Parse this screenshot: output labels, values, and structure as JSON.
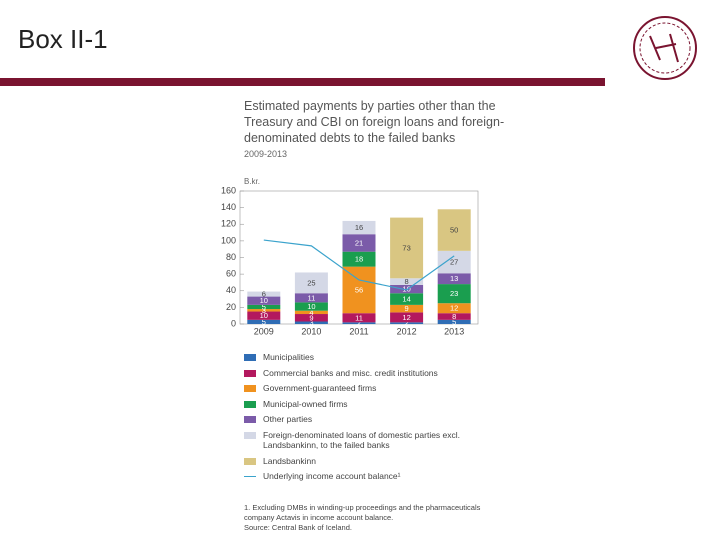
{
  "slide": {
    "title": "Box II-1"
  },
  "chart_data": {
    "type": "bar",
    "stacked": true,
    "title": "Estimated payments by parties other than the Treasury and CBI on foreign loans and foreign-denominated debts to the failed banks",
    "subtitle": "2009-2013",
    "y_label": "B.kr.",
    "categories": [
      "2009",
      "2010",
      "2011",
      "2012",
      "2013"
    ],
    "ylim": [
      0,
      160
    ],
    "yticks": [
      0,
      20,
      40,
      60,
      80,
      100,
      120,
      140,
      160
    ],
    "series": [
      {
        "name": "Municipalities",
        "color": "#2f6db5",
        "values": [
          5,
          3,
          2,
          2,
          5
        ]
      },
      {
        "name": "Commercial banks and misc. credit institutions",
        "color": "#b3185e",
        "values": [
          10,
          9,
          11,
          12,
          8
        ]
      },
      {
        "name": "Government-guaranteed firms",
        "color": "#f0921f",
        "values": [
          3,
          4,
          56,
          9,
          12
        ]
      },
      {
        "name": "Municipal-owned firms",
        "color": "#1a9e4f",
        "values": [
          5,
          10,
          18,
          14,
          23
        ]
      },
      {
        "name": "Other parties",
        "color": "#7b5ba9",
        "values": [
          10,
          11,
          21,
          10,
          13
        ]
      },
      {
        "name": "Foreign-denominated loans of domestic parties excl. Landsbankinn, to the failed banks",
        "color": "#d4d8e6",
        "values": [
          6,
          25,
          16,
          8,
          27
        ]
      },
      {
        "name": "Landsbankinn",
        "color": "#d9c682",
        "values": [
          0,
          0,
          0,
          73,
          50
        ]
      },
      {
        "name": "Underlying income account balance¹",
        "color": "#3ba3cc",
        "kind": "line",
        "values": [
          101,
          94,
          53,
          41,
          82
        ]
      }
    ],
    "notes": [
      "1. Excluding DMBs in winding-up proceedings and the pharmaceuticals company Actavis in income account balance.",
      "Source: Central Bank of Iceland."
    ]
  }
}
